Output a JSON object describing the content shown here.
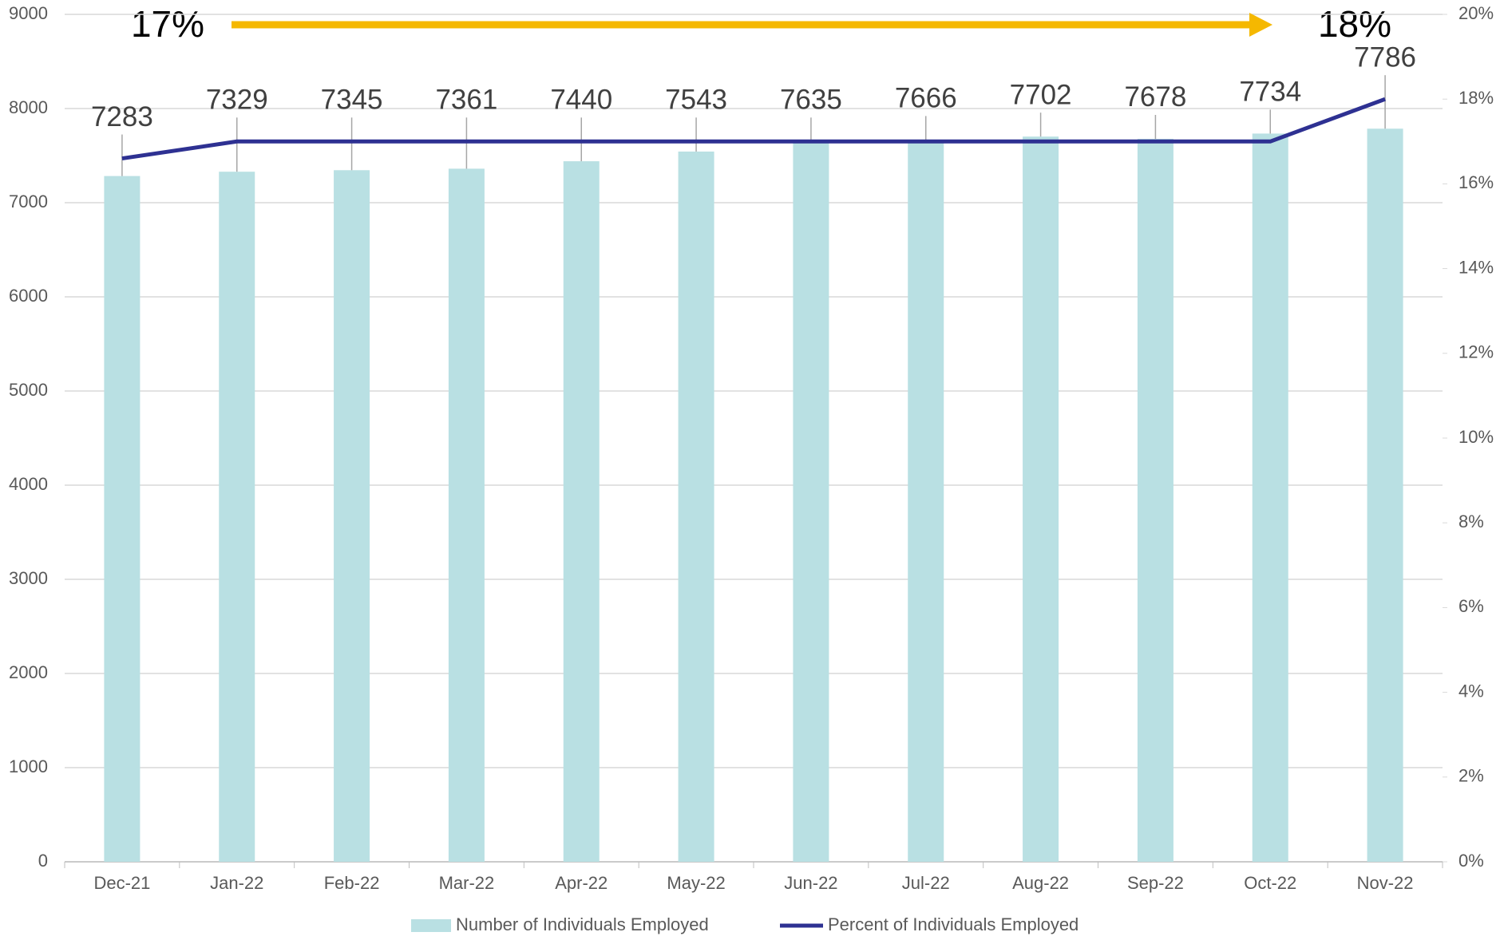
{
  "chart_data": {
    "type": "bar_line",
    "categories": [
      "Dec-21",
      "Jan-22",
      "Feb-22",
      "Mar-22",
      "Apr-22",
      "May-22",
      "Jun-22",
      "Jul-22",
      "Aug-22",
      "Sep-22",
      "Oct-22",
      "Nov-22"
    ],
    "series": [
      {
        "name": "Number of Individuals Employed",
        "type": "bar",
        "color": "#b9e0e3",
        "axis": "y",
        "values": [
          7283,
          7329,
          7345,
          7361,
          7440,
          7543,
          7635,
          7666,
          7702,
          7678,
          7734,
          7786
        ]
      },
      {
        "name": "Percent of Individuals Employed",
        "type": "line",
        "color": "#2e3192",
        "axis": "y2",
        "values": [
          16.6,
          17,
          17,
          17,
          17,
          17,
          17,
          17,
          17,
          17,
          17,
          18
        ]
      }
    ],
    "ylim": [
      0,
      9000
    ],
    "yticks": [
      0,
      1000,
      2000,
      3000,
      4000,
      5000,
      6000,
      7000,
      8000,
      9000
    ],
    "y2lim": [
      0,
      20
    ],
    "y2ticks": [
      {
        "value": 0,
        "label": "0%"
      },
      {
        "value": 2,
        "label": "2%"
      },
      {
        "value": 4,
        "label": "4%"
      },
      {
        "value": 6,
        "label": "6%"
      },
      {
        "value": 8,
        "label": "8%"
      },
      {
        "value": 10,
        "label": "10%"
      },
      {
        "value": 12,
        "label": "12%"
      },
      {
        "value": 14,
        "label": "14%"
      },
      {
        "value": 16,
        "label": "16%"
      },
      {
        "value": 18,
        "label": "18%"
      },
      {
        "value": 20,
        "label": "20%"
      }
    ],
    "grid": true,
    "annotations": [
      "17%",
      "18%"
    ],
    "arrow_color": "#f5b800",
    "legend": "bottom"
  }
}
